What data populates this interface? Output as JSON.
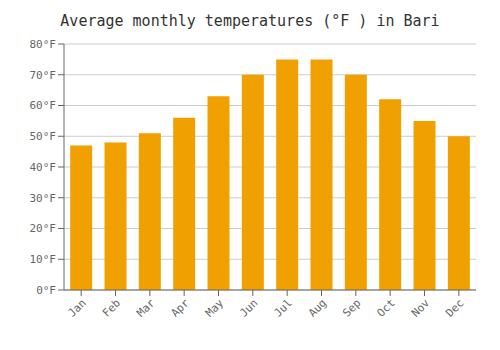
{
  "chart_data": {
    "type": "bar",
    "title": "Average monthly temperatures (°F ) in Bari",
    "categories": [
      "Jan",
      "Feb",
      "Mar",
      "Apr",
      "May",
      "Jun",
      "Jul",
      "Aug",
      "Sep",
      "Oct",
      "Nov",
      "Dec"
    ],
    "values": [
      47,
      48,
      51,
      56,
      63,
      70,
      75,
      75,
      70,
      62,
      55,
      50
    ],
    "color": "#F0A000",
    "ylim": [
      0,
      80
    ],
    "yticks": [
      {
        "value": 0,
        "label": "0°F"
      },
      {
        "value": 10,
        "label": "10°F"
      },
      {
        "value": 20,
        "label": "20°F"
      },
      {
        "value": 30,
        "label": "30°F"
      },
      {
        "value": 40,
        "label": "40°F"
      },
      {
        "value": 50,
        "label": "50°F"
      },
      {
        "value": 60,
        "label": "60°F"
      },
      {
        "value": 70,
        "label": "70°F"
      },
      {
        "value": 80,
        "label": "80°F"
      }
    ],
    "grid": true
  }
}
